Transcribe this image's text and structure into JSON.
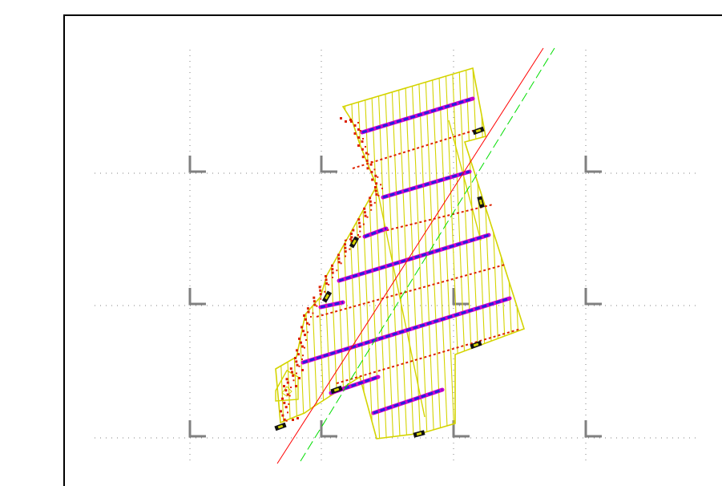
{
  "drawing": {
    "background_color": "#ffffff",
    "frame_color": "#000000",
    "grid_color": "#808080",
    "outline_color": "#d4d400",
    "hatch_color": "#d4d400",
    "row_color": "#2222dd",
    "row_cap_color": "#cc00cc",
    "dot_color": "#dd2200",
    "marker_color": "#111111",
    "guide_line_solid_color": "#ff0000",
    "guide_line_dashed_color": "#00dd00",
    "icons": [
      "grid-corner-marker-icon",
      "equipment-marker-icon"
    ]
  }
}
